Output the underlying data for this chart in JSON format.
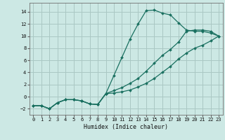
{
  "xlabel": "Humidex (Indice chaleur)",
  "bg_color": "#cce8e4",
  "grid_color": "#aac8c4",
  "line_color": "#1a7060",
  "xlim": [
    -0.5,
    23.5
  ],
  "ylim": [
    -3.0,
    15.5
  ],
  "xticks": [
    0,
    1,
    2,
    3,
    4,
    5,
    6,
    7,
    8,
    9,
    10,
    11,
    12,
    13,
    14,
    15,
    16,
    17,
    18,
    19,
    20,
    21,
    22,
    23
  ],
  "yticks": [
    -2,
    0,
    2,
    4,
    6,
    8,
    10,
    12,
    14
  ],
  "curve1_x": [
    0,
    1,
    2,
    3,
    4,
    5,
    6,
    7,
    8,
    9,
    10,
    11,
    12,
    13,
    14,
    15,
    16,
    17,
    18,
    19,
    20,
    21,
    22,
    23
  ],
  "curve1_y": [
    -1.5,
    -1.5,
    -2.0,
    -1.0,
    -0.5,
    -0.5,
    -0.7,
    -1.2,
    -1.3,
    0.5,
    3.5,
    6.5,
    9.5,
    12.0,
    14.2,
    14.3,
    13.8,
    13.5,
    12.2,
    11.0,
    10.8,
    10.8,
    10.5,
    10.0
  ],
  "curve2_x": [
    0,
    1,
    2,
    3,
    4,
    5,
    6,
    7,
    8,
    9,
    10,
    11,
    12,
    13,
    14,
    15,
    16,
    17,
    18,
    19,
    20,
    21,
    22,
    23
  ],
  "curve2_y": [
    -1.5,
    -1.5,
    -2.0,
    -1.0,
    -0.5,
    -0.5,
    -0.7,
    -1.2,
    -1.3,
    0.5,
    1.0,
    1.5,
    2.2,
    3.0,
    4.2,
    5.5,
    6.8,
    7.8,
    9.0,
    10.8,
    11.0,
    11.0,
    10.8,
    10.0
  ],
  "curve3_x": [
    0,
    1,
    2,
    3,
    4,
    5,
    6,
    7,
    8,
    9,
    10,
    11,
    12,
    13,
    14,
    15,
    16,
    17,
    18,
    19,
    20,
    21,
    22,
    23
  ],
  "curve3_y": [
    -1.5,
    -1.5,
    -2.0,
    -1.0,
    -0.5,
    -0.5,
    -0.7,
    -1.2,
    -1.3,
    0.5,
    0.6,
    0.8,
    1.1,
    1.6,
    2.2,
    3.0,
    4.0,
    5.0,
    6.2,
    7.2,
    8.0,
    8.5,
    9.2,
    10.0
  ]
}
